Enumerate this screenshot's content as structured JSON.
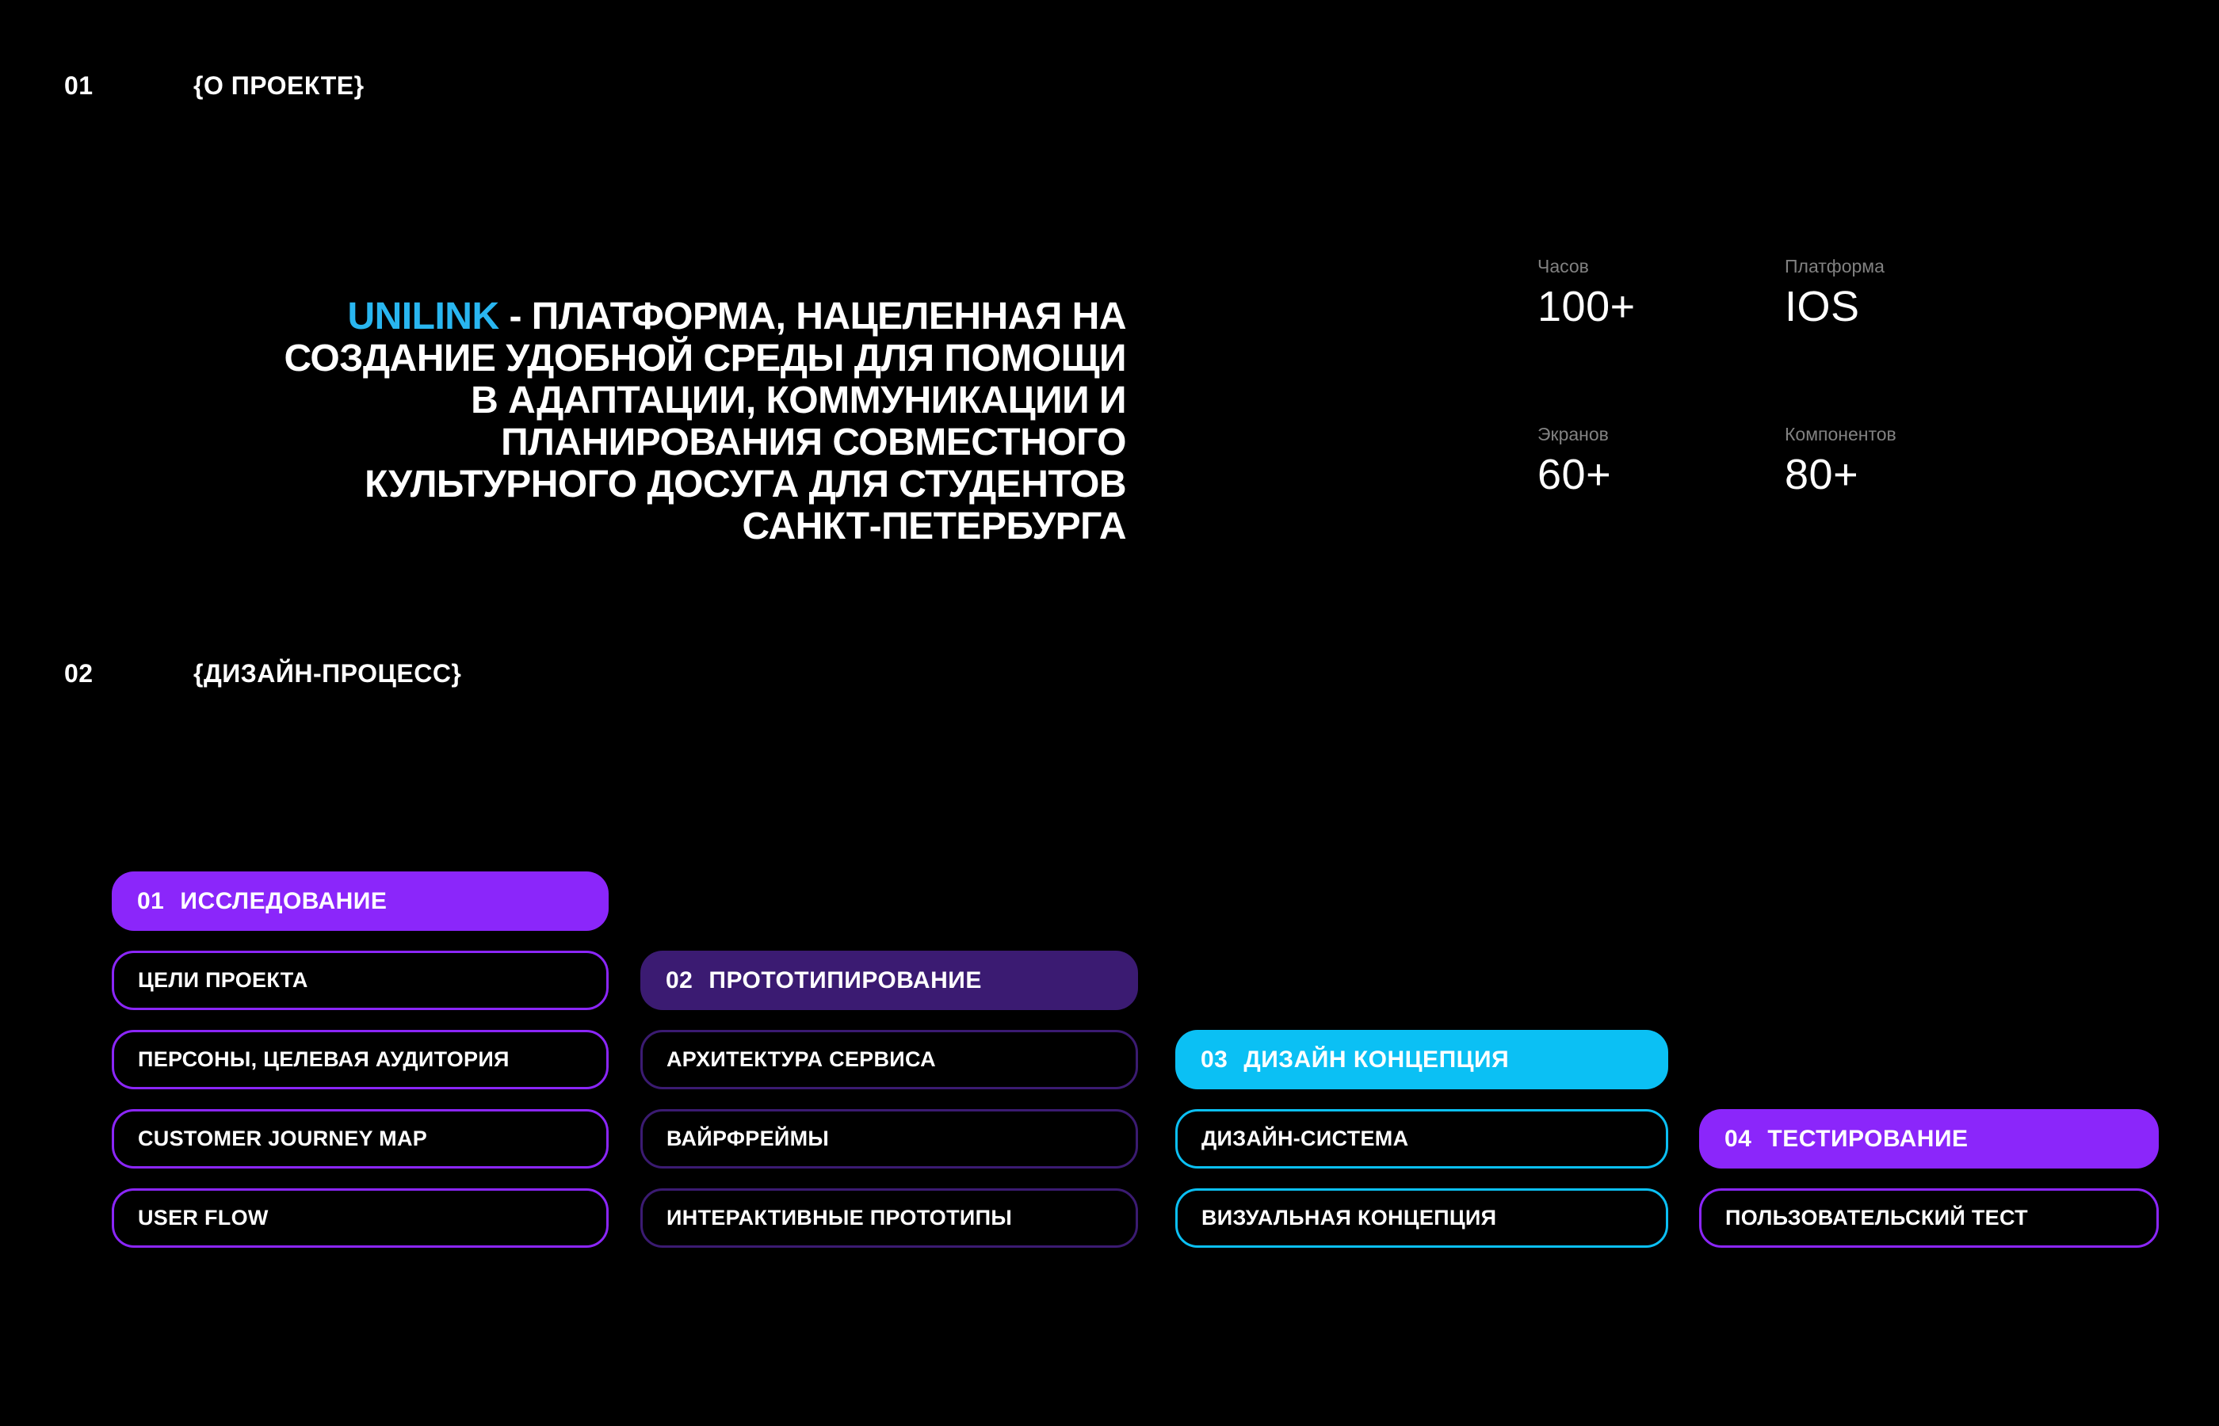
{
  "sections": {
    "about": {
      "number": "01",
      "label": "{О ПРОЕКТЕ}"
    },
    "process": {
      "number": "02",
      "label": "{ДИЗАЙН-ПРОЦЕСС}"
    }
  },
  "hero": {
    "brand": "UNILINK",
    "brand_color": "#29B6F0",
    "title_after_brand": " - ПЛАТФОРМА, НАЦЕЛЕННАЯ НА\nСОЗДАНИЕ УДОБНОЙ СРЕДЫ ДЛЯ ПОМОЩИ\nВ АДАПТАЦИИ, КОММУНИКАЦИИ И\nПЛАНИРОВАНИЯ СОВМЕСТНОГО\nКУЛЬТУРНОГО ДОСУГА ДЛЯ СТУДЕНТОВ\nСАНКТ-ПЕТЕРБУРГА"
  },
  "stats": [
    {
      "label": "Часов",
      "value": "100+"
    },
    {
      "label": "Платформа",
      "value": "IOS"
    },
    {
      "label": "Экранов",
      "value": "60+"
    },
    {
      "label": "Компонентов",
      "value": "80+"
    }
  ],
  "process_columns": [
    {
      "number": "01",
      "title": "ИССЛЕДОВАНИЕ",
      "accent": "#8B26FA",
      "items": [
        "ЦЕЛИ ПРОЕКТА",
        "ПЕРСОНЫ, ЦЕЛЕВАЯ АУДИТОРИЯ",
        "CUSTOMER JOURNEY MAP",
        "USER FLOW"
      ]
    },
    {
      "number": "02",
      "title": "ПРОТОТИПИРОВАНИЕ",
      "accent": "#3B1B72",
      "items": [
        "АРХИТЕКТУРА СЕРВИСА",
        "ВАЙРФРЕЙМЫ",
        "ИНТЕРАКТИВНЫЕ ПРОТОТИПЫ"
      ]
    },
    {
      "number": "03",
      "title": "ДИЗАЙН КОНЦЕПЦИЯ",
      "accent": "#0BC0F4",
      "items": [
        "ДИЗАЙН-СИСТЕМА",
        "ВИЗУАЛЬНАЯ КОНЦЕПЦИЯ"
      ]
    },
    {
      "number": "04",
      "title": "ТЕСТИРОВАНИЕ",
      "accent": "#8B26FA",
      "items": [
        "ПОЛЬЗОВАТЕЛЬСКИЙ ТЕСТ"
      ]
    }
  ]
}
